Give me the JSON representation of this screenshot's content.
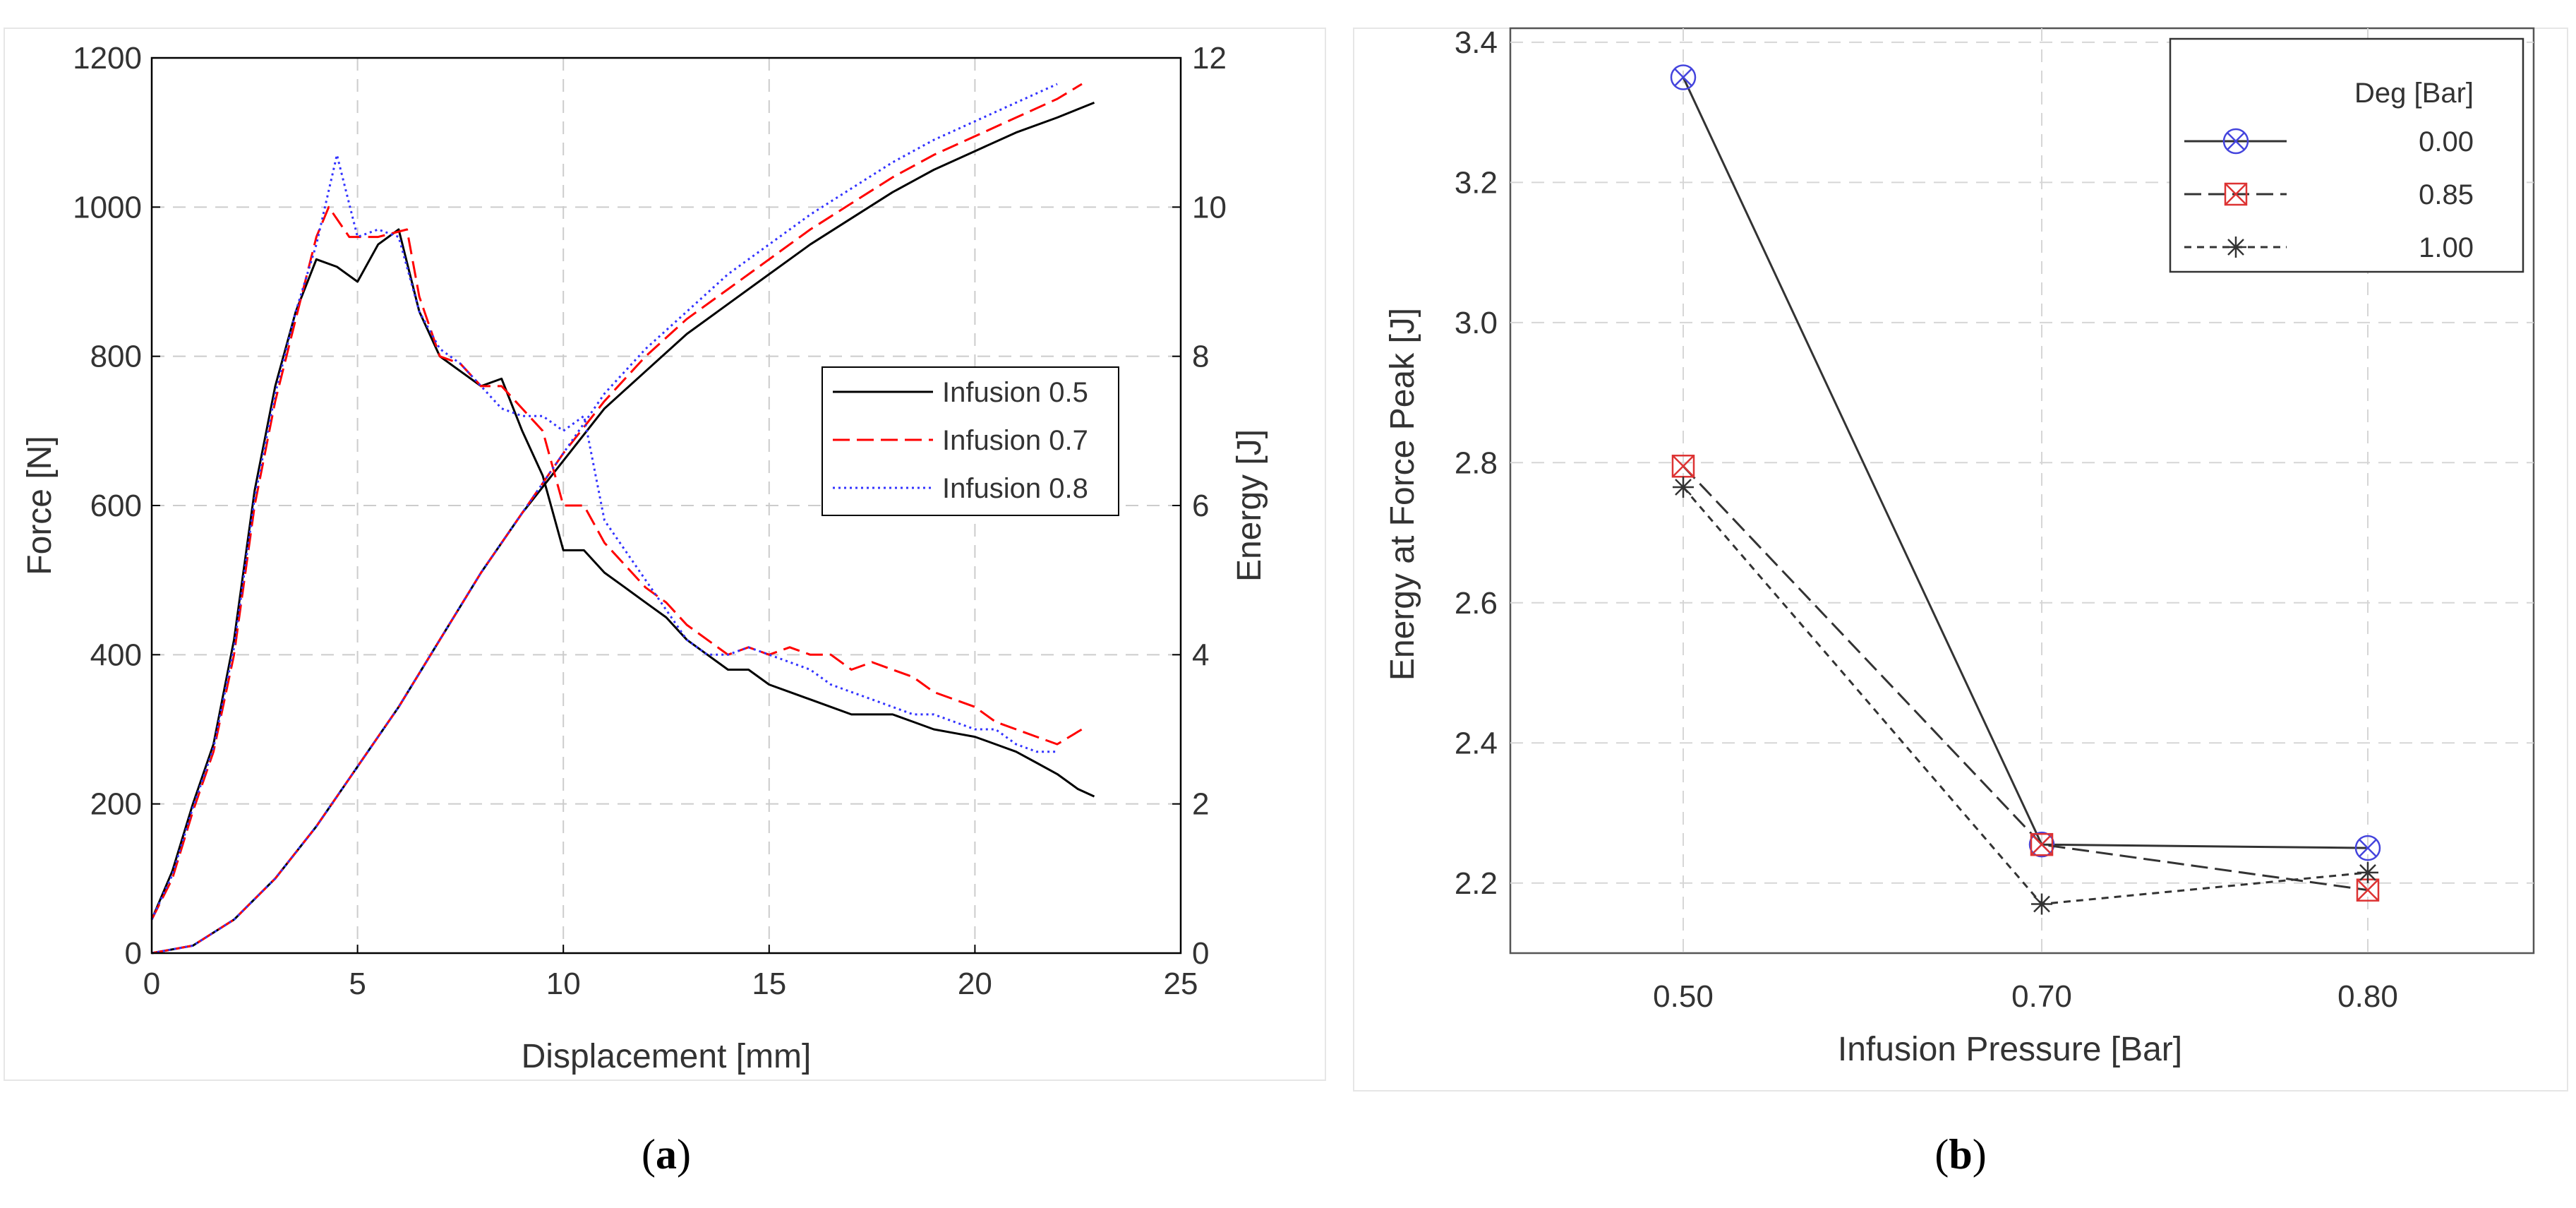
{
  "chart_data": [
    {
      "type": "line",
      "panel_label": "a",
      "xlabel": "Displacement [mm]",
      "ylabel": "Force [N]",
      "y2label": "Energy [J]",
      "xlim": [
        0,
        25
      ],
      "ylim": [
        0,
        1200
      ],
      "y2lim": [
        0,
        12
      ],
      "xticks": [
        "0",
        "5",
        "10",
        "15",
        "20",
        "25"
      ],
      "yticks": [
        "0",
        "200",
        "400",
        "600",
        "800",
        "1000",
        "1200"
      ],
      "y2ticks": [
        "0",
        "2",
        "4",
        "6",
        "8",
        "10",
        "12"
      ],
      "grid": true,
      "legend_position": "center-right",
      "series": [
        {
          "name": "Infusion 0.5",
          "color": "#000000",
          "dash": "solid",
          "force": [
            [
              0,
              45
            ],
            [
              0.5,
              110
            ],
            [
              1,
              200
            ],
            [
              1.5,
              280
            ],
            [
              2,
              420
            ],
            [
              2.5,
              620
            ],
            [
              3,
              760
            ],
            [
              3.5,
              860
            ],
            [
              4,
              930
            ],
            [
              4.5,
              920
            ],
            [
              5,
              900
            ],
            [
              5.5,
              950
            ],
            [
              6,
              970
            ],
            [
              6.5,
              860
            ],
            [
              7,
              800
            ],
            [
              7.5,
              780
            ],
            [
              8,
              760
            ],
            [
              8.5,
              770
            ],
            [
              9,
              700
            ],
            [
              9.5,
              640
            ],
            [
              10,
              540
            ],
            [
              10.5,
              540
            ],
            [
              11,
              510
            ],
            [
              11.5,
              490
            ],
            [
              12,
              470
            ],
            [
              12.5,
              450
            ],
            [
              13,
              420
            ],
            [
              13.5,
              400
            ],
            [
              14,
              380
            ],
            [
              14.5,
              380
            ],
            [
              15,
              360
            ],
            [
              15.5,
              350
            ],
            [
              16,
              340
            ],
            [
              16.5,
              330
            ],
            [
              17,
              320
            ],
            [
              17.5,
              320
            ],
            [
              18,
              320
            ],
            [
              18.5,
              310
            ],
            [
              19,
              300
            ],
            [
              19.5,
              295
            ],
            [
              20,
              290
            ],
            [
              20.5,
              280
            ],
            [
              21,
              270
            ],
            [
              21.5,
              255
            ],
            [
              22,
              240
            ],
            [
              22.5,
              220
            ],
            [
              22.9,
              210
            ]
          ],
          "energy": [
            [
              0,
              0
            ],
            [
              1,
              0.1
            ],
            [
              2,
              0.45
            ],
            [
              3,
              1.0
            ],
            [
              4,
              1.7
            ],
            [
              5,
              2.5
            ],
            [
              6,
              3.3
            ],
            [
              7,
              4.2
            ],
            [
              8,
              5.1
            ],
            [
              9,
              5.9
            ],
            [
              10,
              6.6
            ],
            [
              11,
              7.3
            ],
            [
              12,
              7.8
            ],
            [
              13,
              8.3
            ],
            [
              14,
              8.7
            ],
            [
              15,
              9.1
            ],
            [
              16,
              9.5
            ],
            [
              17,
              9.85
            ],
            [
              18,
              10.2
            ],
            [
              19,
              10.5
            ],
            [
              20,
              10.75
            ],
            [
              21,
              11.0
            ],
            [
              22,
              11.2
            ],
            [
              22.9,
              11.4
            ]
          ]
        },
        {
          "name": "Infusion 0.7",
          "color": "#ff0000",
          "dash": "dashed",
          "force": [
            [
              0,
              45
            ],
            [
              0.5,
              100
            ],
            [
              1,
              190
            ],
            [
              1.5,
              270
            ],
            [
              2,
              400
            ],
            [
              2.5,
              600
            ],
            [
              3,
              740
            ],
            [
              3.5,
              850
            ],
            [
              4,
              960
            ],
            [
              4.3,
              1000
            ],
            [
              4.8,
              960
            ],
            [
              5.5,
              960
            ],
            [
              6.2,
              970
            ],
            [
              6.5,
              880
            ],
            [
              7,
              800
            ],
            [
              7.5,
              790
            ],
            [
              8,
              760
            ],
            [
              8.5,
              760
            ],
            [
              9,
              730
            ],
            [
              9.5,
              700
            ],
            [
              10,
              600
            ],
            [
              10.5,
              600
            ],
            [
              11,
              550
            ],
            [
              11.5,
              520
            ],
            [
              12,
              490
            ],
            [
              12.5,
              470
            ],
            [
              13,
              440
            ],
            [
              13.5,
              420
            ],
            [
              14,
              400
            ],
            [
              14.5,
              410
            ],
            [
              15,
              400
            ],
            [
              15.5,
              410
            ],
            [
              16,
              400
            ],
            [
              16.5,
              400
            ],
            [
              17,
              380
            ],
            [
              17.5,
              390
            ],
            [
              18,
              380
            ],
            [
              18.5,
              370
            ],
            [
              19,
              350
            ],
            [
              19.5,
              340
            ],
            [
              20,
              330
            ],
            [
              20.5,
              310
            ],
            [
              21,
              300
            ],
            [
              21.5,
              290
            ],
            [
              22,
              280
            ],
            [
              22.6,
              300
            ]
          ],
          "energy": [
            [
              0,
              0
            ],
            [
              1,
              0.1
            ],
            [
              2,
              0.45
            ],
            [
              3,
              1.0
            ],
            [
              4,
              1.7
            ],
            [
              5,
              2.5
            ],
            [
              6,
              3.3
            ],
            [
              7,
              4.2
            ],
            [
              8,
              5.1
            ],
            [
              9,
              5.9
            ],
            [
              10,
              6.7
            ],
            [
              11,
              7.4
            ],
            [
              12,
              8.0
            ],
            [
              13,
              8.5
            ],
            [
              14,
              8.9
            ],
            [
              15,
              9.3
            ],
            [
              16,
              9.7
            ],
            [
              17,
              10.05
            ],
            [
              18,
              10.4
            ],
            [
              19,
              10.7
            ],
            [
              20,
              10.95
            ],
            [
              21,
              11.2
            ],
            [
              22,
              11.45
            ],
            [
              22.6,
              11.65
            ]
          ]
        },
        {
          "name": "Infusion 0.8",
          "color": "#3333ff",
          "dash": "dotted",
          "force": [
            [
              0,
              45
            ],
            [
              0.5,
              105
            ],
            [
              1,
              195
            ],
            [
              1.5,
              275
            ],
            [
              2,
              410
            ],
            [
              2.5,
              610
            ],
            [
              3,
              750
            ],
            [
              3.5,
              860
            ],
            [
              4,
              950
            ],
            [
              4.5,
              1070
            ],
            [
              5,
              960
            ],
            [
              5.5,
              970
            ],
            [
              6,
              960
            ],
            [
              6.5,
              860
            ],
            [
              7,
              810
            ],
            [
              7.5,
              790
            ],
            [
              8,
              760
            ],
            [
              8.5,
              730
            ],
            [
              9,
              720
            ],
            [
              9.5,
              720
            ],
            [
              10,
              700
            ],
            [
              10.5,
              720
            ],
            [
              11,
              580
            ],
            [
              11.5,
              540
            ],
            [
              12,
              500
            ],
            [
              12.5,
              460
            ],
            [
              13,
              420
            ],
            [
              13.5,
              400
            ],
            [
              14,
              400
            ],
            [
              14.5,
              410
            ],
            [
              15,
              400
            ],
            [
              15.5,
              390
            ],
            [
              16,
              380
            ],
            [
              16.5,
              360
            ],
            [
              17,
              350
            ],
            [
              17.5,
              340
            ],
            [
              18,
              330
            ],
            [
              18.5,
              320
            ],
            [
              19,
              320
            ],
            [
              19.5,
              310
            ],
            [
              20,
              300
            ],
            [
              20.5,
              300
            ],
            [
              21,
              280
            ],
            [
              21.5,
              270
            ],
            [
              22,
              270
            ]
          ],
          "energy": [
            [
              0,
              0
            ],
            [
              1,
              0.1
            ],
            [
              2,
              0.45
            ],
            [
              3,
              1.0
            ],
            [
              4,
              1.7
            ],
            [
              5,
              2.5
            ],
            [
              6,
              3.3
            ],
            [
              7,
              4.2
            ],
            [
              8,
              5.1
            ],
            [
              9,
              5.9
            ],
            [
              10,
              6.7
            ],
            [
              11,
              7.5
            ],
            [
              12,
              8.1
            ],
            [
              13,
              8.6
            ],
            [
              14,
              9.1
            ],
            [
              15,
              9.5
            ],
            [
              16,
              9.9
            ],
            [
              17,
              10.25
            ],
            [
              18,
              10.6
            ],
            [
              19,
              10.9
            ],
            [
              20,
              11.15
            ],
            [
              21,
              11.4
            ],
            [
              22,
              11.65
            ]
          ]
        }
      ]
    },
    {
      "type": "line",
      "panel_label": "b",
      "xlabel": "Infusion Pressure [Bar]",
      "ylabel": "Energy at Force Peak [J]",
      "categories": [
        "0.50",
        "0.70",
        "0.80"
      ],
      "ylim": [
        2.1,
        3.42
      ],
      "yticks": [
        "2.2",
        "2.4",
        "2.6",
        "2.8",
        "3.0",
        "3.2",
        "3.4"
      ],
      "grid": true,
      "legend_title": "Deg [Bar]",
      "legend_position": "top-right",
      "series": [
        {
          "name": "0.00",
          "color": "#333333",
          "marker_color": "#4444dd",
          "marker": "circle-x",
          "dash": "solid",
          "values": [
            3.35,
            2.255,
            2.25
          ]
        },
        {
          "name": "0.85",
          "color": "#333333",
          "marker_color": "#dd3333",
          "marker": "square-x",
          "dash": "dashed",
          "values": [
            2.795,
            2.255,
            2.19
          ]
        },
        {
          "name": "1.00",
          "color": "#333333",
          "marker_color": "#333333",
          "marker": "star",
          "dash": "short-dashed",
          "values": [
            2.765,
            2.17,
            2.215
          ]
        }
      ]
    }
  ]
}
